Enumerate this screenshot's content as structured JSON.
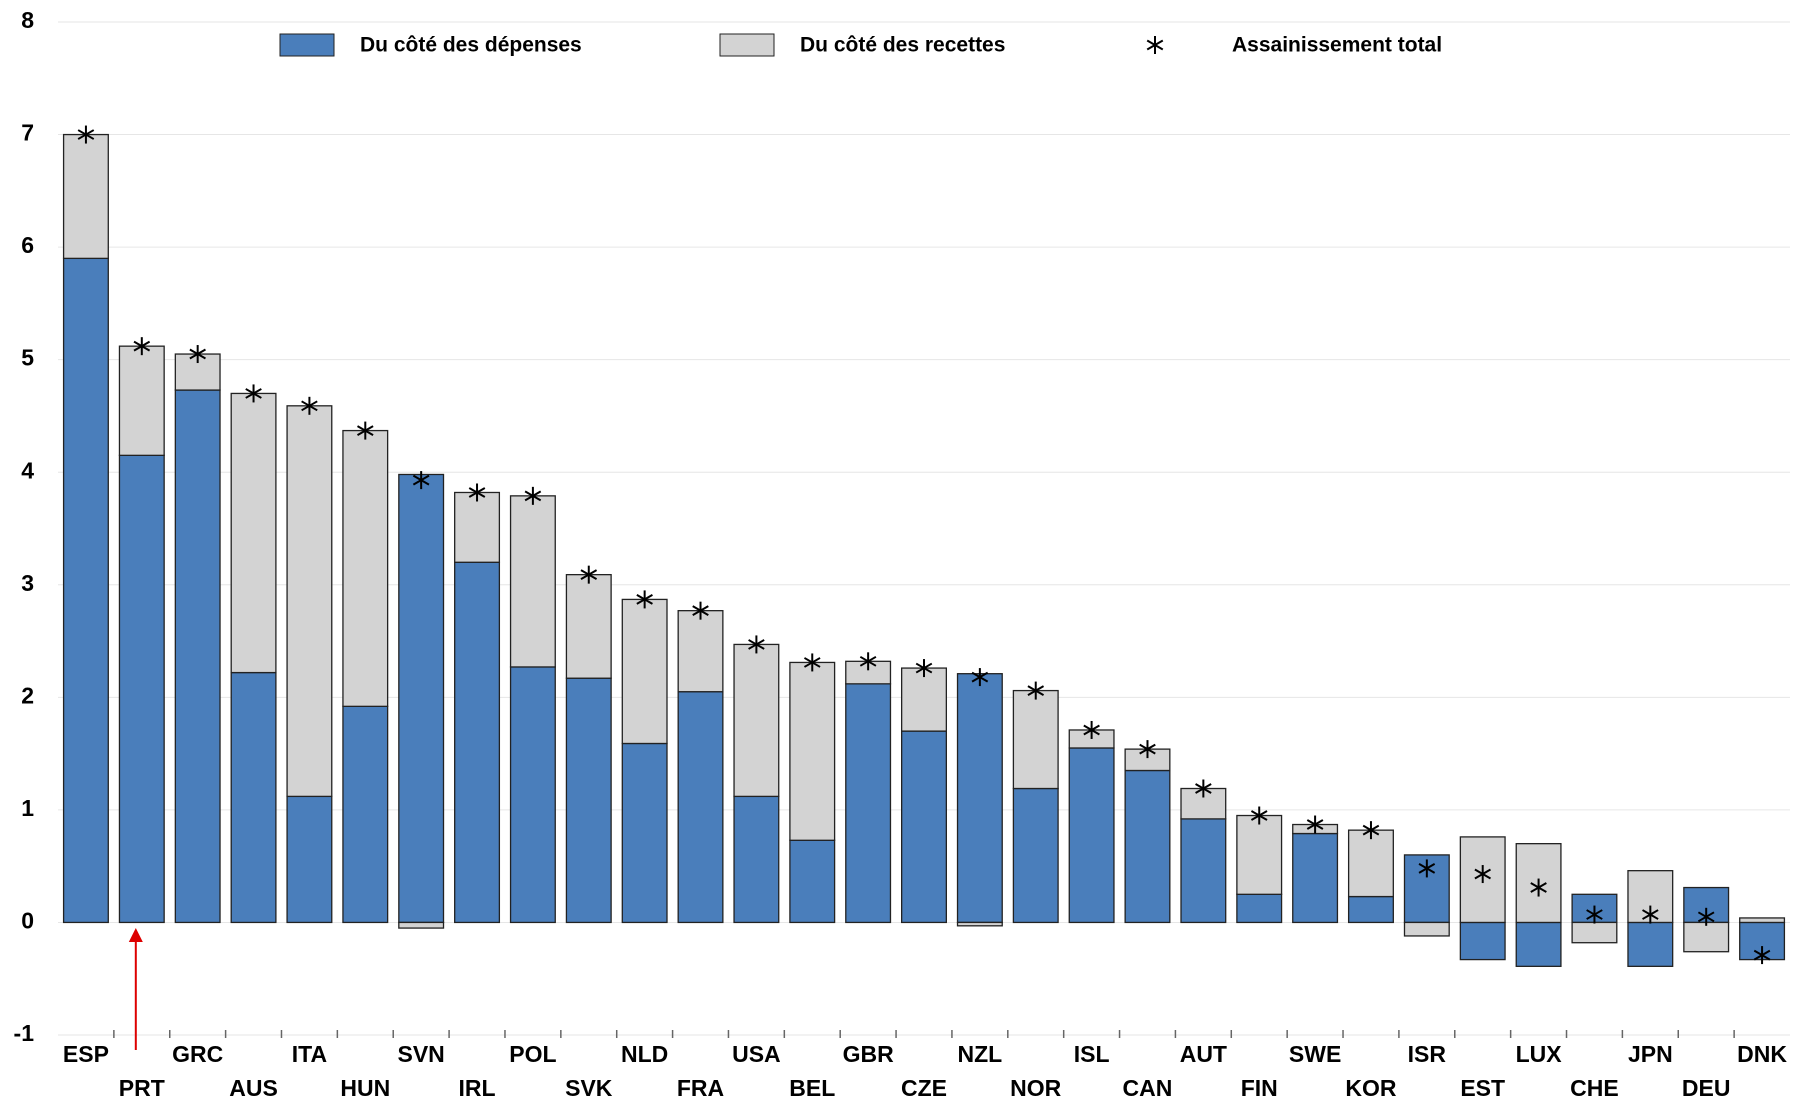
{
  "chart_data": {
    "type": "bar",
    "stacked": true,
    "categories": [
      "ESP",
      "PRT",
      "GRC",
      "AUS",
      "ITA",
      "HUN",
      "SVN",
      "IRL",
      "POL",
      "SVK",
      "NLD",
      "FRA",
      "USA",
      "BEL",
      "GBR",
      "CZE",
      "NZL",
      "NOR",
      "ISL",
      "CAN",
      "AUT",
      "FIN",
      "SWE",
      "KOR",
      "ISR",
      "EST",
      "LUX",
      "CHE",
      "JPN",
      "DEU",
      "DNK"
    ],
    "series": [
      {
        "name": "Du côté des dépenses",
        "color": "#4a7ebb",
        "values": [
          5.9,
          4.15,
          4.73,
          2.22,
          1.12,
          1.92,
          3.98,
          3.2,
          2.27,
          2.17,
          1.59,
          2.05,
          1.12,
          0.73,
          2.12,
          1.7,
          2.21,
          1.19,
          1.55,
          1.35,
          0.92,
          0.25,
          0.79,
          0.23,
          0.6,
          -0.33,
          -0.39,
          0.25,
          -0.39,
          0.31,
          -0.33
        ]
      },
      {
        "name": "Du côté des recettes",
        "color": "#d3d3d3",
        "values": [
          1.1,
          0.97,
          0.32,
          2.48,
          3.47,
          2.45,
          -0.05,
          0.62,
          1.52,
          0.92,
          1.28,
          0.72,
          1.35,
          1.58,
          0.2,
          0.56,
          -0.03,
          0.87,
          0.16,
          0.19,
          0.27,
          0.7,
          0.08,
          0.59,
          -0.12,
          0.76,
          0.7,
          -0.18,
          0.46,
          -0.26,
          0.04
        ]
      }
    ],
    "markers": {
      "name": "Assainissement total",
      "values": [
        7.0,
        5.12,
        5.05,
        4.7,
        4.59,
        4.37,
        3.93,
        3.82,
        3.79,
        3.09,
        2.87,
        2.77,
        2.47,
        2.31,
        2.32,
        2.26,
        2.18,
        2.06,
        1.71,
        1.54,
        1.19,
        0.95,
        0.87,
        0.82,
        0.48,
        0.43,
        0.31,
        0.07,
        0.07,
        0.05,
        -0.29
      ]
    },
    "ylim": [
      -1,
      8
    ],
    "yticks": [
      -1,
      0,
      1,
      2,
      3,
      4,
      5,
      6,
      7,
      8
    ],
    "grid": true
  }
}
